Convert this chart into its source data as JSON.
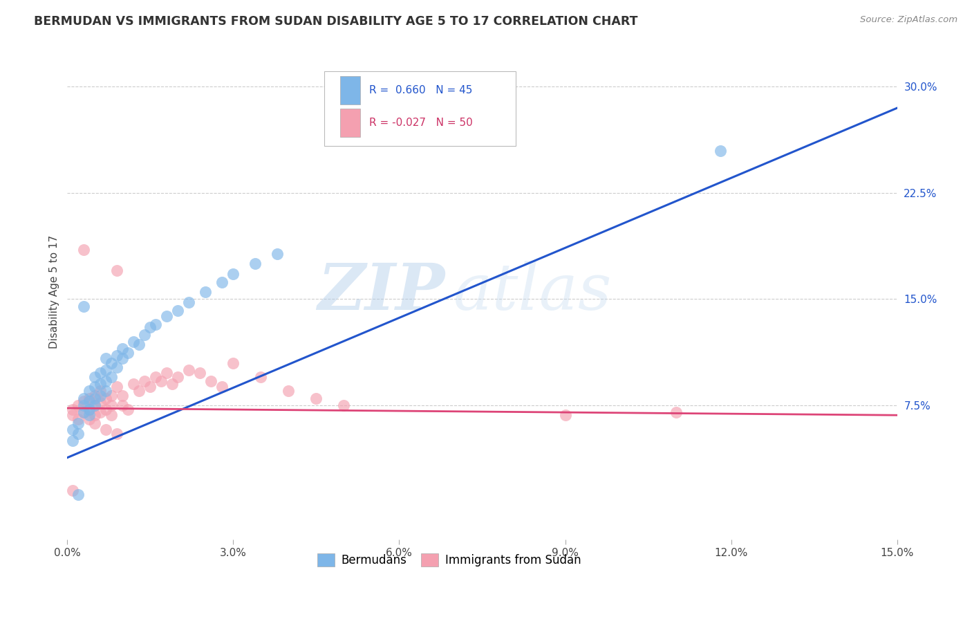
{
  "title": "BERMUDAN VS IMMIGRANTS FROM SUDAN DISABILITY AGE 5 TO 17 CORRELATION CHART",
  "source_text": "Source: ZipAtlas.com",
  "ylabel": "Disability Age 5 to 17",
  "xlim": [
    0.0,
    0.15
  ],
  "ylim": [
    -0.02,
    0.33
  ],
  "xticks": [
    0.0,
    0.03,
    0.06,
    0.09,
    0.12,
    0.15
  ],
  "xtick_labels": [
    "0.0%",
    "3.0%",
    "6.0%",
    "9.0%",
    "12.0%",
    "15.0%"
  ],
  "yticks": [
    0.075,
    0.15,
    0.225,
    0.3
  ],
  "ytick_labels": [
    "7.5%",
    "15.0%",
    "22.5%",
    "30.0%"
  ],
  "legend_label_blue": "Bermudans",
  "legend_label_pink": "Immigrants from Sudan",
  "blue_color": "#7EB6E8",
  "pink_color": "#F4A0B0",
  "blue_line_color": "#2255CC",
  "pink_line_color": "#DD4477",
  "watermark_zip": "ZIP",
  "watermark_atlas": "atlas",
  "blue_N": 45,
  "pink_N": 50,
  "blue_x": [
    0.001,
    0.001,
    0.002,
    0.002,
    0.003,
    0.003,
    0.003,
    0.004,
    0.004,
    0.004,
    0.004,
    0.005,
    0.005,
    0.005,
    0.005,
    0.006,
    0.006,
    0.006,
    0.007,
    0.007,
    0.007,
    0.007,
    0.008,
    0.008,
    0.009,
    0.009,
    0.01,
    0.01,
    0.011,
    0.012,
    0.013,
    0.014,
    0.015,
    0.016,
    0.018,
    0.02,
    0.022,
    0.025,
    0.028,
    0.03,
    0.034,
    0.038,
    0.003,
    0.118,
    0.002
  ],
  "blue_y": [
    0.058,
    0.05,
    0.062,
    0.055,
    0.07,
    0.075,
    0.08,
    0.068,
    0.072,
    0.078,
    0.085,
    0.075,
    0.08,
    0.088,
    0.095,
    0.082,
    0.09,
    0.098,
    0.085,
    0.092,
    0.1,
    0.108,
    0.095,
    0.105,
    0.102,
    0.11,
    0.108,
    0.115,
    0.112,
    0.12,
    0.118,
    0.125,
    0.13,
    0.132,
    0.138,
    0.142,
    0.148,
    0.155,
    0.162,
    0.168,
    0.175,
    0.182,
    0.145,
    0.255,
    0.012
  ],
  "pink_x": [
    0.001,
    0.001,
    0.002,
    0.002,
    0.003,
    0.003,
    0.004,
    0.004,
    0.004,
    0.005,
    0.005,
    0.005,
    0.006,
    0.006,
    0.006,
    0.007,
    0.007,
    0.008,
    0.008,
    0.008,
    0.009,
    0.009,
    0.01,
    0.01,
    0.011,
    0.012,
    0.013,
    0.014,
    0.015,
    0.016,
    0.017,
    0.018,
    0.019,
    0.02,
    0.022,
    0.024,
    0.026,
    0.028,
    0.03,
    0.035,
    0.04,
    0.045,
    0.05,
    0.09,
    0.11,
    0.003,
    0.005,
    0.007,
    0.009,
    0.001
  ],
  "pink_y": [
    0.068,
    0.072,
    0.065,
    0.075,
    0.07,
    0.078,
    0.065,
    0.072,
    0.08,
    0.068,
    0.075,
    0.082,
    0.07,
    0.077,
    0.085,
    0.072,
    0.08,
    0.068,
    0.075,
    0.082,
    0.17,
    0.088,
    0.075,
    0.082,
    0.072,
    0.09,
    0.085,
    0.092,
    0.088,
    0.095,
    0.092,
    0.098,
    0.09,
    0.095,
    0.1,
    0.098,
    0.092,
    0.088,
    0.105,
    0.095,
    0.085,
    0.08,
    0.075,
    0.068,
    0.07,
    0.185,
    0.062,
    0.058,
    0.055,
    0.015
  ],
  "blue_line_x": [
    0.0,
    0.15
  ],
  "blue_line_y": [
    0.038,
    0.285
  ],
  "pink_line_x": [
    0.0,
    0.15
  ],
  "pink_line_y": [
    0.073,
    0.068
  ]
}
